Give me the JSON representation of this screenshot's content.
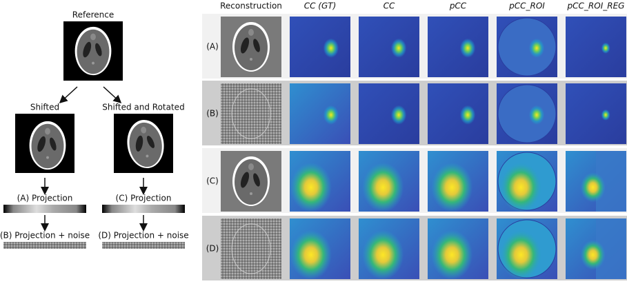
{
  "left": {
    "reference": "Reference",
    "shifted": "Shifted",
    "shifted_rotated": "Shifted and Rotated",
    "projections": [
      "(A) Projection",
      "(C) Projection"
    ],
    "noisy_projections": [
      "(B) Projection + noise",
      "(D) Projection + noise"
    ]
  },
  "grid": {
    "columns": [
      "Reconstruction",
      "CC (GT)",
      "CC",
      "pCC",
      "pCC_ROI",
      "pCC_ROI_REG"
    ],
    "rows": [
      "(A)",
      "(B)",
      "(C)",
      "(D)"
    ]
  }
}
